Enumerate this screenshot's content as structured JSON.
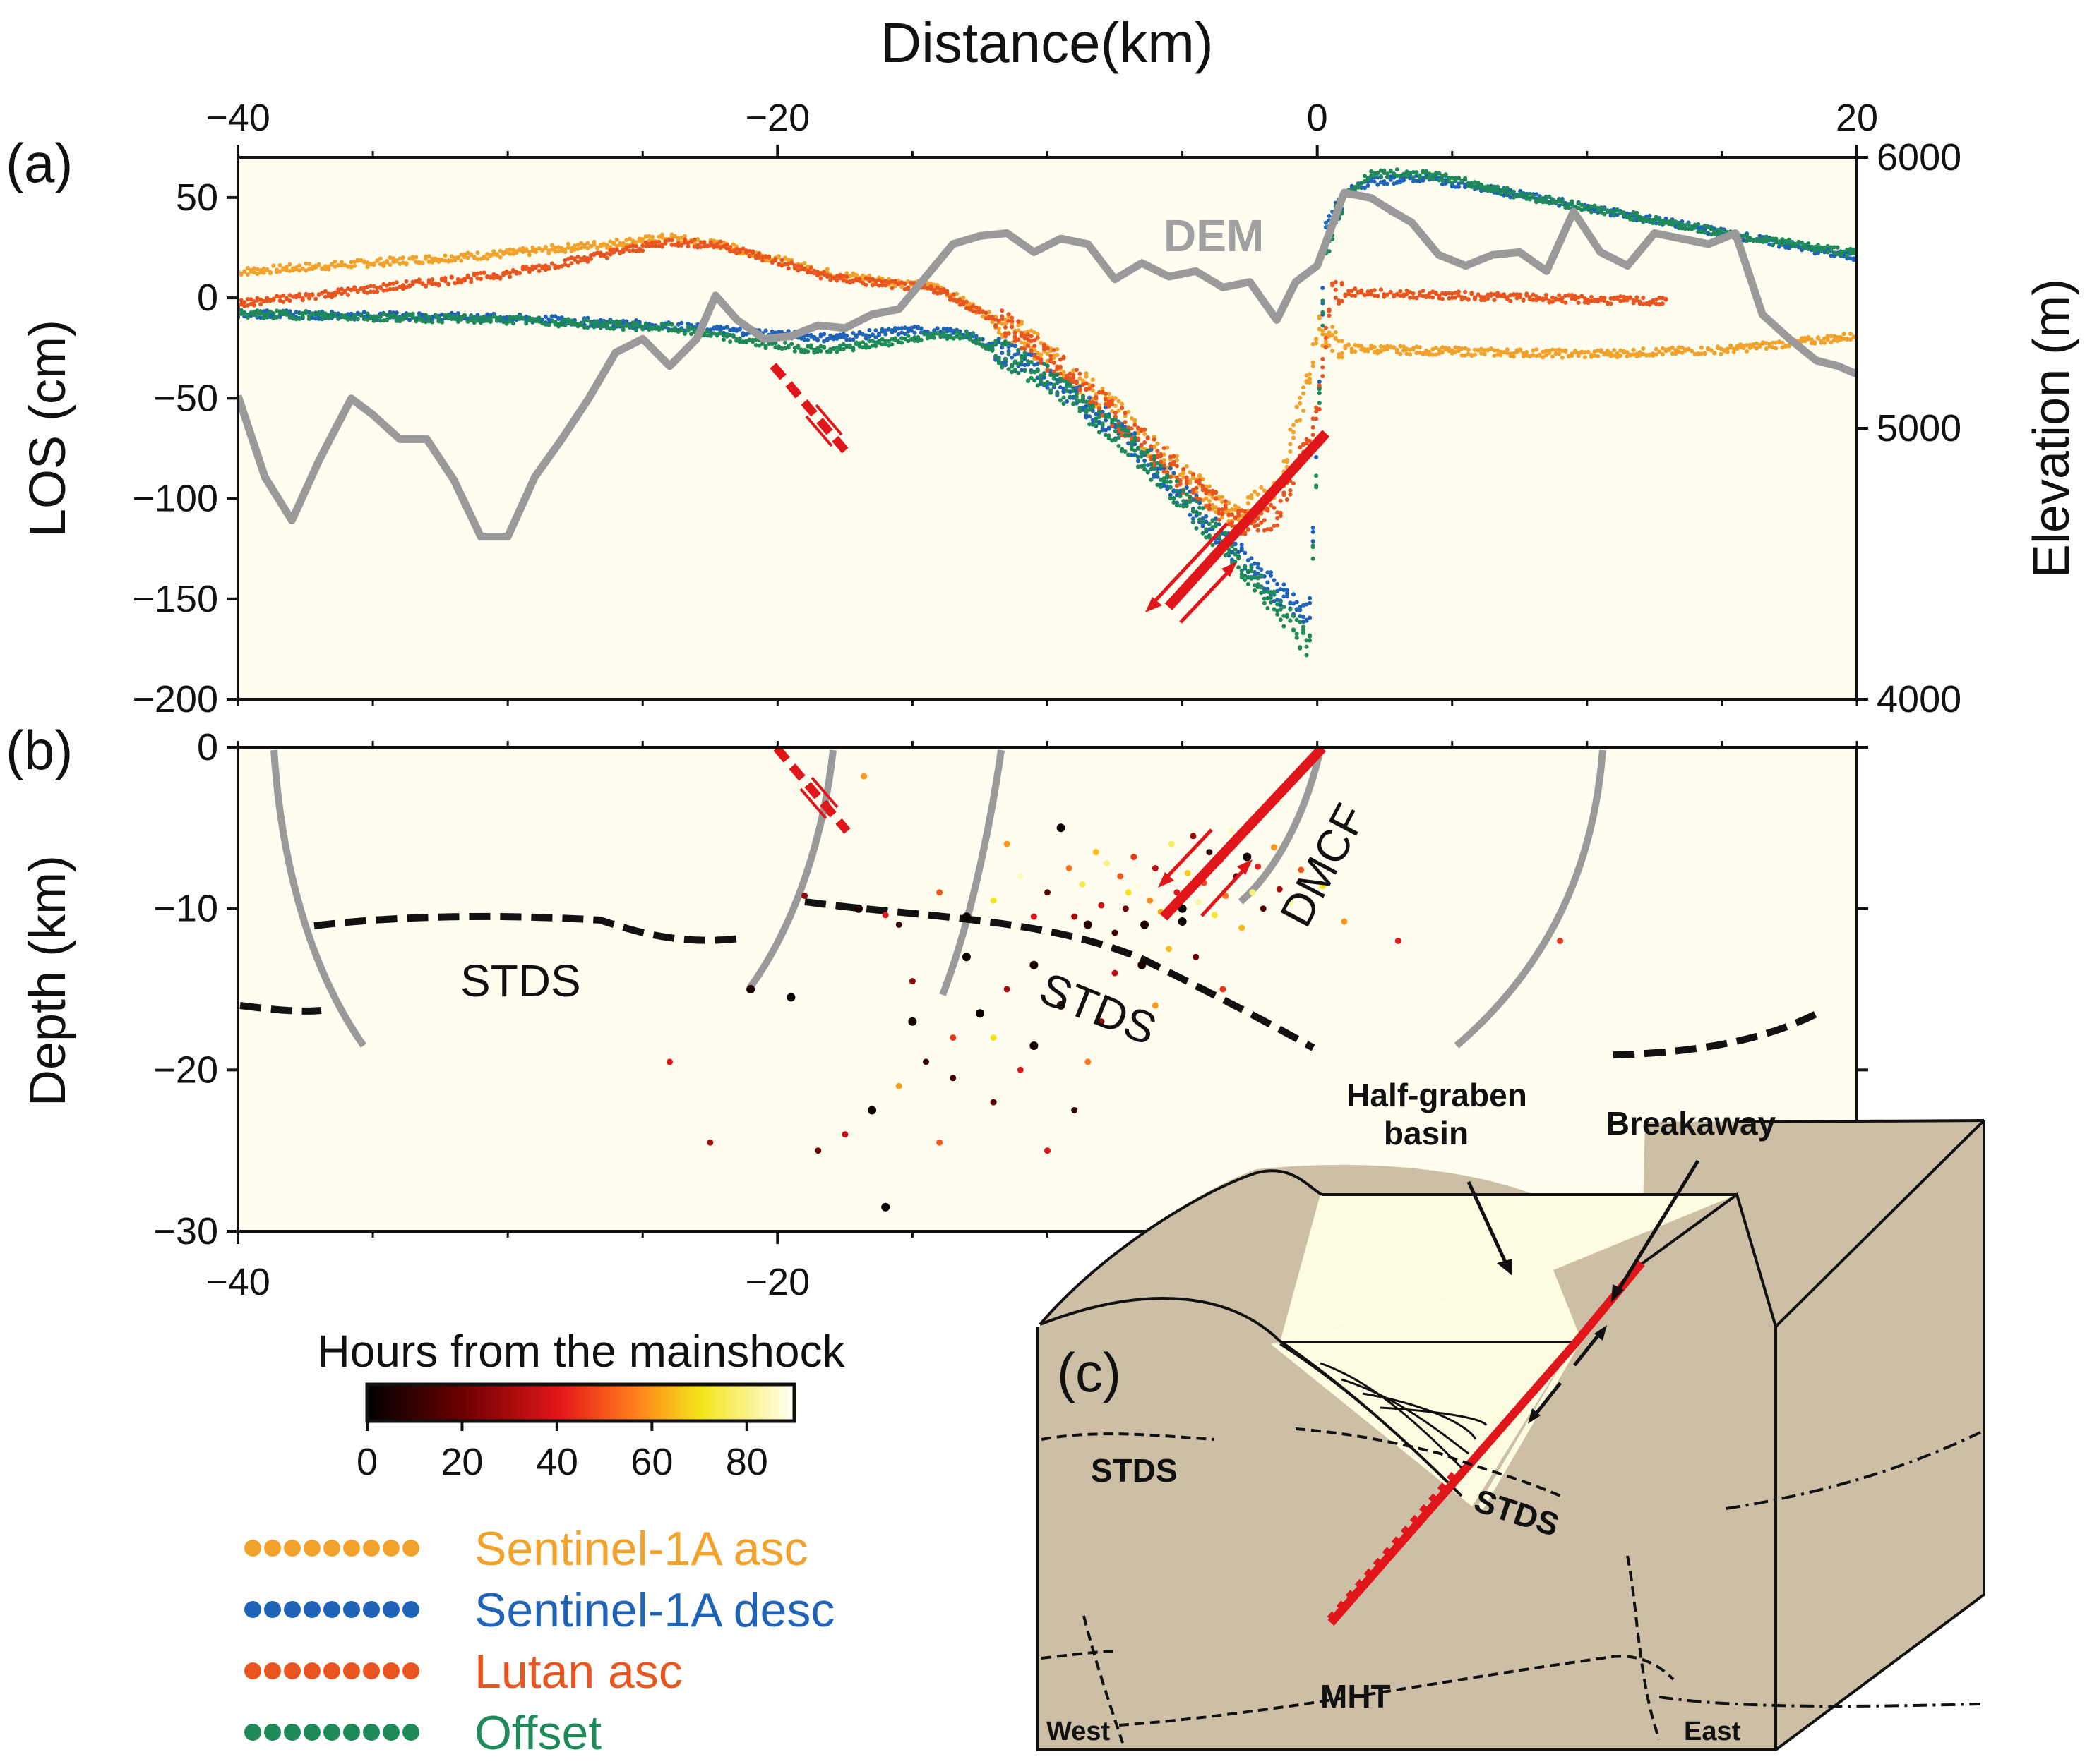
{
  "panel_a": {
    "tag": "(a)",
    "top_title": "Distance(km)",
    "y_left_label": "LOS (cm)",
    "y_right_label": "Elevation (m)",
    "dem_label": "DEM"
  },
  "panel_b": {
    "tag": "(b)",
    "y_label": "Depth (km)",
    "labels": {
      "stds_1": "STDS",
      "stds_2": "STDS",
      "dmcf": "DMCF"
    }
  },
  "panel_c": {
    "tag": "(c)",
    "labels": {
      "half_graben_1": "Half-graben",
      "half_graben_2": "basin",
      "breakaway": "Breakaway",
      "stds_left": "STDS",
      "stds_mid": "STDS",
      "mht": "MHT",
      "west": "West",
      "east": "East"
    }
  },
  "colorbar": {
    "title": "Hours from the mainshock",
    "ticks": [
      "0",
      "20",
      "40",
      "60",
      "80"
    ],
    "tick_values": [
      0,
      20,
      40,
      60,
      80
    ],
    "range": [
      0,
      90
    ],
    "stops": [
      "#000000",
      "#6b0000",
      "#e3161a",
      "#ff7b1c",
      "#f4e41a",
      "#fffff5"
    ]
  },
  "legend": [
    {
      "label": "Sentinel-1A asc",
      "color": "#f2a22a"
    },
    {
      "label": "Sentinel-1A desc",
      "color": "#1f63b8"
    },
    {
      "label": "Lutan asc",
      "color": "#e8551e"
    },
    {
      "label": "Offset",
      "color": "#1e8a5a"
    }
  ],
  "chart_data": [
    {
      "type": "line",
      "panel": "a",
      "xlabel": "Distance(km)",
      "ylabel": "LOS (cm)",
      "y2label": "Elevation (m)",
      "xlim": [
        -40,
        20
      ],
      "ylim": [
        -200,
        70
      ],
      "y2lim": [
        4000,
        6000
      ],
      "x_ticks": [
        "−40",
        "−20",
        "0",
        "20"
      ],
      "x_tick_values": [
        -40,
        -20,
        0,
        20
      ],
      "y_ticks": [
        "50",
        "0",
        "−50",
        "−100",
        "−150",
        "−200"
      ],
      "y_tick_values": [
        50,
        0,
        -50,
        -100,
        -150,
        -200
      ],
      "y2_ticks": [
        "6000",
        "5000",
        "4000"
      ],
      "y2_tick_values": [
        6000,
        5000,
        4000
      ],
      "series": [
        {
          "name": "Sentinel-1A asc",
          "color": "#f2a22a",
          "x": [
            -40,
            -30,
            -24,
            -22,
            -18,
            -14,
            -11,
            -8,
            -5,
            -3,
            -1.5,
            -0.3,
            0,
            1,
            3,
            6,
            10,
            15,
            20
          ],
          "y": [
            13,
            22,
            30,
            26,
            12,
            5,
            -18,
            -50,
            -88,
            -110,
            -95,
            -40,
            -15,
            -25,
            -26,
            -27,
            -28,
            -26,
            -19
          ]
        },
        {
          "name": "Sentinel-1A desc",
          "color": "#1f63b8",
          "x": [
            -40,
            -30,
            -24,
            -20,
            -18,
            -15,
            -13,
            -10,
            -7,
            -4,
            -2,
            -0.8,
            -0.3,
            0.3,
            1,
            2,
            4,
            8,
            12,
            16,
            20
          ],
          "y": [
            -8,
            -10,
            -14,
            -18,
            -20,
            -16,
            -18,
            -38,
            -70,
            -112,
            -140,
            -155,
            -160,
            30,
            52,
            58,
            60,
            50,
            40,
            30,
            20
          ]
        },
        {
          "name": "Lutan asc",
          "color": "#e8551e",
          "x": [
            -40,
            -30,
            -24,
            -22,
            -18,
            -14,
            -11,
            -8,
            -5,
            -3,
            -1.5,
            0,
            0.5,
            3,
            8,
            13
          ],
          "y": [
            -3,
            12,
            28,
            26,
            10,
            4,
            -18,
            -52,
            -90,
            -112,
            -108,
            -60,
            3,
            2,
            0,
            -2
          ]
        },
        {
          "name": "Offset",
          "color": "#1e8a5a",
          "x": [
            -40,
            -30,
            -24,
            -20,
            -18,
            -15,
            -13,
            -10,
            -7,
            -4,
            -2,
            -0.8,
            -0.3,
            0.3,
            1,
            2,
            4,
            8,
            12,
            16,
            20
          ],
          "y": [
            -8,
            -11,
            -15,
            -24,
            -26,
            -20,
            -18,
            -40,
            -72,
            -115,
            -145,
            -165,
            -175,
            25,
            50,
            62,
            62,
            50,
            40,
            30,
            22
          ]
        },
        {
          "name": "DEM",
          "color": "#9a9a9a",
          "axis": "right",
          "x": [
            -40,
            -39,
            -38,
            -37,
            -35.8,
            -35,
            -34,
            -33,
            -32,
            -31,
            -30,
            -29,
            -28,
            -27,
            -26,
            -25,
            -24,
            -23,
            -22.3,
            -21.5,
            -20.5,
            -19.5,
            -18.5,
            -17.5,
            -16.5,
            -15.5,
            -14.5,
            -13.5,
            -12.5,
            -11.5,
            -10.5,
            -9.5,
            -8.5,
            -7.5,
            -6.5,
            -5.5,
            -4.5,
            -3.5,
            -2.5,
            -1.5,
            -0.8,
            0,
            1,
            2,
            2.8,
            3.5,
            4.5,
            5.5,
            6.5,
            7.5,
            8.5,
            9.5,
            10.5,
            11.5,
            12.5,
            13.5,
            14.5,
            15.5,
            16.5,
            17.5,
            18.5,
            19.3,
            20
          ],
          "y": [
            5120,
            4820,
            4660,
            4880,
            5110,
            5050,
            4960,
            4960,
            4810,
            4600,
            4600,
            4820,
            4960,
            5110,
            5280,
            5330,
            5230,
            5330,
            5490,
            5400,
            5330,
            5340,
            5380,
            5370,
            5420,
            5440,
            5560,
            5680,
            5710,
            5720,
            5650,
            5700,
            5680,
            5550,
            5610,
            5560,
            5580,
            5520,
            5540,
            5400,
            5540,
            5600,
            5870,
            5850,
            5800,
            5760,
            5640,
            5600,
            5640,
            5650,
            5580,
            5800,
            5650,
            5600,
            5720,
            5700,
            5680,
            5720,
            5420,
            5330,
            5250,
            5230,
            5200
          ]
        }
      ]
    },
    {
      "type": "scatter",
      "panel": "b",
      "xlabel": "",
      "ylabel": "Depth (km)",
      "xlim": [
        -40,
        20
      ],
      "ylim": [
        -30,
        0
      ],
      "x_ticks": [
        "−40",
        "−20"
      ],
      "x_tick_values": [
        -40,
        -20
      ],
      "y_ticks": [
        "0",
        "−10",
        "−20",
        "−30"
      ],
      "y_tick_values": [
        0,
        -10,
        -20,
        -30
      ],
      "color_scale": "Hours from the mainshock",
      "points": [
        {
          "x": -18.2,
          "y": -3.5,
          "h": 30
        },
        {
          "x": -16.8,
          "y": -1.8,
          "h": 60
        },
        {
          "x": -19.0,
          "y": -9.2,
          "h": 25
        },
        {
          "x": -17.0,
          "y": -10.0,
          "h": 5
        },
        {
          "x": -16.0,
          "y": -10.4,
          "h": 40
        },
        {
          "x": -15.5,
          "y": -11.0,
          "h": 10
        },
        {
          "x": -14.0,
          "y": -9.0,
          "h": 50
        },
        {
          "x": -13.0,
          "y": -10.5,
          "h": 2
        },
        {
          "x": -12.0,
          "y": -9.5,
          "h": 70
        },
        {
          "x": -11.5,
          "y": -6.0,
          "h": 60
        },
        {
          "x": -11.0,
          "y": -8.0,
          "h": 85
        },
        {
          "x": -10.5,
          "y": -10.5,
          "h": 40
        },
        {
          "x": -10.0,
          "y": -9.0,
          "h": 15
        },
        {
          "x": -9.5,
          "y": -5.0,
          "h": 3
        },
        {
          "x": -9.2,
          "y": -7.5,
          "h": 55
        },
        {
          "x": -9.0,
          "y": -10.5,
          "h": 30
        },
        {
          "x": -8.7,
          "y": -8.5,
          "h": 75
        },
        {
          "x": -8.5,
          "y": -11.0,
          "h": 8
        },
        {
          "x": -8.2,
          "y": -6.5,
          "h": 65
        },
        {
          "x": -8.0,
          "y": -9.8,
          "h": 35
        },
        {
          "x": -7.8,
          "y": -7.2,
          "h": 80
        },
        {
          "x": -7.5,
          "y": -11.5,
          "h": 12
        },
        {
          "x": -7.3,
          "y": -8.0,
          "h": 50
        },
        {
          "x": -7.1,
          "y": -10.0,
          "h": 20
        },
        {
          "x": -7.0,
          "y": -9.0,
          "h": 70
        },
        {
          "x": -6.8,
          "y": -6.8,
          "h": 45
        },
        {
          "x": -6.6,
          "y": -8.6,
          "h": 88
        },
        {
          "x": -6.4,
          "y": -11.0,
          "h": 5
        },
        {
          "x": -6.2,
          "y": -9.5,
          "h": 58
        },
        {
          "x": -6.0,
          "y": -7.5,
          "h": 33
        },
        {
          "x": -5.8,
          "y": -10.2,
          "h": 62
        },
        {
          "x": -5.6,
          "y": -8.2,
          "h": 18
        },
        {
          "x": -5.4,
          "y": -6.0,
          "h": 76
        },
        {
          "x": -5.2,
          "y": -9.0,
          "h": 40
        },
        {
          "x": -5.0,
          "y": -10.8,
          "h": 2
        },
        {
          "x": -4.8,
          "y": -7.8,
          "h": 67
        },
        {
          "x": -4.6,
          "y": -5.5,
          "h": 28
        },
        {
          "x": -4.4,
          "y": -9.6,
          "h": 83
        },
        {
          "x": -4.2,
          "y": -8.4,
          "h": 48
        },
        {
          "x": -4.0,
          "y": -6.5,
          "h": 10
        },
        {
          "x": -3.8,
          "y": -10.4,
          "h": 72
        },
        {
          "x": -3.6,
          "y": -7.0,
          "h": 37
        },
        {
          "x": -3.4,
          "y": -9.2,
          "h": 55
        },
        {
          "x": -3.2,
          "y": -5.2,
          "h": 85
        },
        {
          "x": -3.0,
          "y": -8.0,
          "h": 22
        },
        {
          "x": -2.8,
          "y": -11.2,
          "h": 64
        },
        {
          "x": -2.6,
          "y": -6.8,
          "h": 4
        },
        {
          "x": -2.4,
          "y": -9.0,
          "h": 78
        },
        {
          "x": -2.2,
          "y": -7.4,
          "h": 42
        },
        {
          "x": -2.0,
          "y": -10.0,
          "h": 15
        },
        {
          "x": -1.6,
          "y": -6.2,
          "h": 60
        },
        {
          "x": -1.4,
          "y": -8.8,
          "h": 30
        },
        {
          "x": -1.0,
          "y": -9.6,
          "h": 80
        },
        {
          "x": -0.6,
          "y": -7.6,
          "h": 50
        },
        {
          "x": 0.2,
          "y": -8.6,
          "h": 70
        },
        {
          "x": 1.0,
          "y": -10.8,
          "h": 60
        },
        {
          "x": 3.0,
          "y": -12.0,
          "h": 40
        },
        {
          "x": 9.0,
          "y": -12.0,
          "h": 45
        },
        {
          "x": -10.5,
          "y": -13.5,
          "h": 5
        },
        {
          "x": -11.5,
          "y": -15.0,
          "h": 30
        },
        {
          "x": -12.5,
          "y": -16.5,
          "h": 2
        },
        {
          "x": -13.5,
          "y": -18.0,
          "h": 45
        },
        {
          "x": -14.5,
          "y": -19.5,
          "h": 10
        },
        {
          "x": -15.5,
          "y": -21.0,
          "h": 60
        },
        {
          "x": -16.5,
          "y": -22.5,
          "h": 3
        },
        {
          "x": -17.5,
          "y": -24.0,
          "h": 35
        },
        {
          "x": -18.5,
          "y": -25.0,
          "h": 20
        },
        {
          "x": -16.0,
          "y": -28.5,
          "h": 0
        },
        {
          "x": -11.0,
          "y": -20.0,
          "h": 40
        },
        {
          "x": -9.5,
          "y": -16.0,
          "h": 8
        },
        {
          "x": -8.5,
          "y": -19.5,
          "h": 55
        },
        {
          "x": -12.0,
          "y": -22.0,
          "h": 15
        },
        {
          "x": -14.0,
          "y": -24.5,
          "h": 50
        },
        {
          "x": -13.0,
          "y": -13.0,
          "h": 2
        },
        {
          "x": -15.0,
          "y": -14.5,
          "h": 25
        },
        {
          "x": -7.5,
          "y": -14.0,
          "h": 35
        },
        {
          "x": -6.5,
          "y": -13.5,
          "h": 5
        },
        {
          "x": -5.5,
          "y": -12.5,
          "h": 65
        },
        {
          "x": -4.5,
          "y": -13.0,
          "h": 20
        },
        {
          "x": -3.5,
          "y": -15.0,
          "h": 45
        },
        {
          "x": -9.0,
          "y": -22.5,
          "h": 10
        },
        {
          "x": -10.0,
          "y": -25.0,
          "h": 40
        },
        {
          "x": -19.5,
          "y": -15.5,
          "h": 0
        },
        {
          "x": -21.0,
          "y": -15.0,
          "h": 5
        },
        {
          "x": -22.5,
          "y": -24.5,
          "h": 30
        },
        {
          "x": -24.0,
          "y": -19.5,
          "h": 40
        },
        {
          "x": -15.0,
          "y": -17.0,
          "h": 4
        },
        {
          "x": -13.5,
          "y": -20.5,
          "h": 12
        },
        {
          "x": -12.0,
          "y": -18.0,
          "h": 70
        },
        {
          "x": -10.5,
          "y": -18.5,
          "h": 3
        },
        {
          "x": -8.0,
          "y": -17.0,
          "h": 25
        },
        {
          "x": -6.0,
          "y": -16.0,
          "h": 60
        },
        {
          "x": -5.0,
          "y": -10.0,
          "h": 0
        }
      ]
    }
  ]
}
